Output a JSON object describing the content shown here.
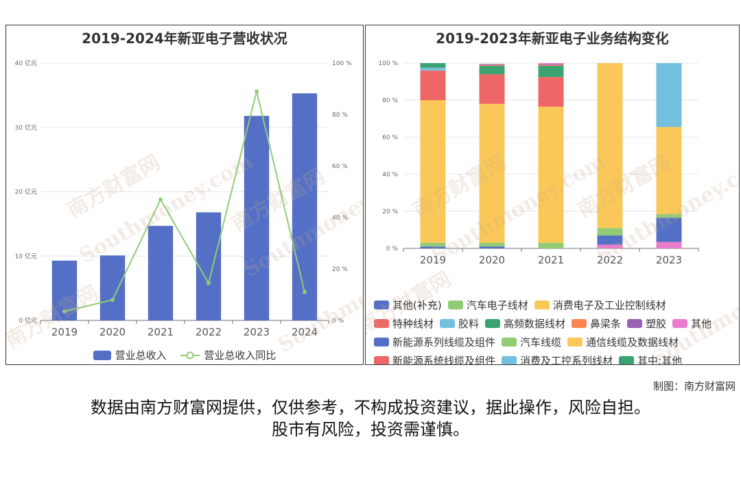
{
  "left_title": "2019-2024年新亚电子营收状况",
  "right_title": "2019-2023年新亚电子业务结构变化",
  "watermark_cn": "南方财富网",
  "watermark_en": "Southmoney.com",
  "credit": "制图：南方财富网",
  "disclaimer_line1": "数据由南方财富网提供，仅供参考，不构成投资建议，据此操作，风险自担。",
  "disclaimer_line2": "股市有风险，投资需谨慎。",
  "colors": {
    "bar": "#5470c6",
    "line": "#91cc75"
  },
  "chart_data": [
    {
      "type": "bar",
      "categories": [
        "2019",
        "2020",
        "2021",
        "2022",
        "2023",
        "2024"
      ],
      "series": [
        {
          "name": "营业总收入",
          "type": "bar",
          "axis": "left",
          "values": [
            9.3,
            10.1,
            14.7,
            16.8,
            31.8,
            35.3
          ]
        },
        {
          "name": "营业总收入同比",
          "type": "line",
          "axis": "right",
          "values": [
            3.5,
            8,
            47,
            14.5,
            89,
            11
          ]
        }
      ],
      "left_axis": {
        "ticks": [
          "0 亿元",
          "10 亿元",
          "20 亿元",
          "30 亿元",
          "40 亿元"
        ],
        "ylim": [
          0,
          40
        ]
      },
      "right_axis": {
        "ticks": [
          "0 %",
          "20 %",
          "40 %",
          "60 %",
          "80 %",
          "100 %"
        ],
        "ylim": [
          0,
          100
        ]
      },
      "legend_placement": "bottom",
      "grid": true
    },
    {
      "type": "bar",
      "stacked": true,
      "categories": [
        "2019",
        "2020",
        "2021",
        "2022",
        "2023"
      ],
      "y_ticks": [
        "0 %",
        "20 %",
        "40 %",
        "60 %",
        "80 %",
        "100 %"
      ],
      "ylim": [
        0,
        100
      ],
      "series": [
        {
          "name": "其他(补充)",
          "color": "#5470c6",
          "values": [
            1,
            1,
            0,
            0,
            0
          ]
        },
        {
          "name": "汽车电子线材",
          "color": "#91cc75",
          "values": [
            2,
            2,
            3,
            0,
            0
          ]
        },
        {
          "name": "消费电子及工业控制线材",
          "color": "#fac858",
          "values": [
            77,
            75,
            73.5,
            0,
            0
          ]
        },
        {
          "name": "特种线材",
          "color": "#ee6666",
          "values": [
            16,
            16,
            16,
            0,
            0
          ]
        },
        {
          "name": "胶料",
          "color": "#73c0de",
          "values": [
            1.5,
            0,
            0,
            0,
            0
          ]
        },
        {
          "name": "高频数据线材",
          "color": "#3ba272",
          "values": [
            2.5,
            4.5,
            6,
            0,
            0
          ]
        },
        {
          "name": "鼻梁条",
          "color": "#fc8452",
          "values": [
            0,
            0.5,
            0.5,
            0,
            0
          ]
        },
        {
          "name": "塑胶",
          "color": "#9a60b4",
          "values": [
            0,
            0.5,
            0.5,
            0,
            0
          ]
        },
        {
          "name": "其他",
          "color": "#ea7ccc",
          "values": [
            0,
            0,
            0.5,
            2,
            3.5
          ]
        },
        {
          "name": "新能源系列线缆及组件",
          "color": "#5470c6",
          "values": [
            0,
            0,
            0,
            5,
            13
          ]
        },
        {
          "name": "汽车线缆",
          "color": "#91cc75",
          "values": [
            0,
            0,
            0,
            4,
            2
          ]
        },
        {
          "name": "通信线缆及数据线材",
          "color": "#fac858",
          "values": [
            0,
            0,
            0,
            89,
            47
          ]
        },
        {
          "name": "新能源系统线缆及组件",
          "color": "#ee6666",
          "values": [
            0,
            0,
            0,
            0,
            0
          ]
        },
        {
          "name": "消费及工控系列线材",
          "color": "#73c0de",
          "values": [
            0,
            0,
            0,
            0,
            34.5
          ]
        },
        {
          "name": "其中:其他",
          "color": "#3ba272",
          "values": [
            0,
            0,
            0,
            0,
            0
          ]
        }
      ],
      "legend_placement": "bottom",
      "grid": true
    }
  ]
}
